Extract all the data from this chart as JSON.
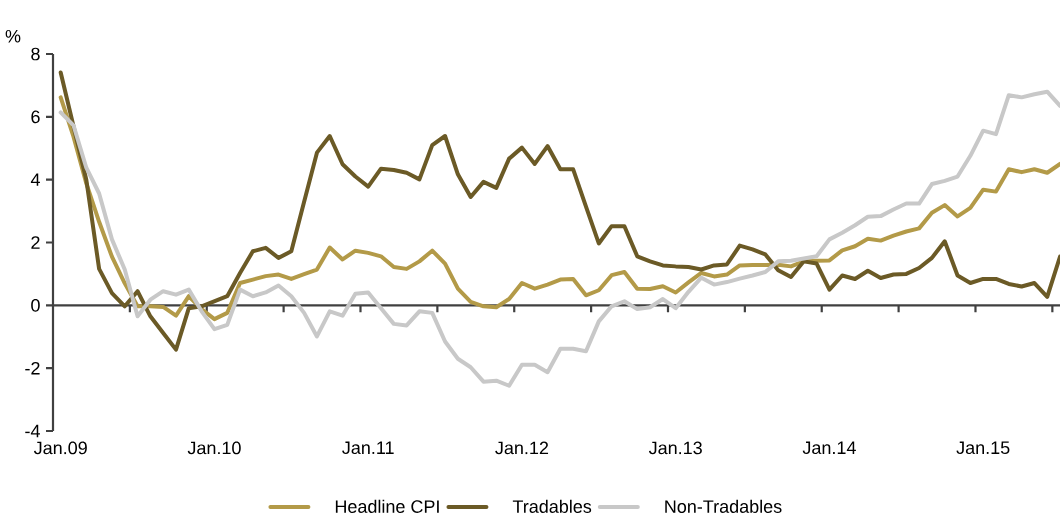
{
  "chart_data": {
    "type": "line",
    "ylabel": "%",
    "x": [
      "2009-01",
      "2009-02",
      "2009-03",
      "2009-04",
      "2009-05",
      "2009-06",
      "2009-07",
      "2009-08",
      "2009-09",
      "2009-10",
      "2009-11",
      "2009-12",
      "2010-01",
      "2010-02",
      "2010-03",
      "2010-04",
      "2010-05",
      "2010-06",
      "2010-07",
      "2010-08",
      "2010-09",
      "2010-10",
      "2010-11",
      "2010-12",
      "2011-01",
      "2011-02",
      "2011-03",
      "2011-04",
      "2011-05",
      "2011-06",
      "2011-07",
      "2011-08",
      "2011-09",
      "2011-10",
      "2011-11",
      "2011-12",
      "2012-01",
      "2012-02",
      "2012-03",
      "2012-04",
      "2012-05",
      "2012-06",
      "2012-07",
      "2012-08",
      "2012-09",
      "2012-10",
      "2012-11",
      "2012-12",
      "2013-01",
      "2013-02",
      "2013-03",
      "2013-04",
      "2013-05",
      "2013-06",
      "2013-07",
      "2013-08",
      "2013-09",
      "2013-10",
      "2013-11",
      "2013-12",
      "2014-01",
      "2014-02",
      "2014-03",
      "2014-04",
      "2014-05",
      "2014-06",
      "2014-07",
      "2014-08",
      "2014-09",
      "2014-10",
      "2014-11",
      "2014-12",
      "2015-01",
      "2015-02",
      "2015-03",
      "2015-04",
      "2015-05",
      "2015-06",
      "2015-07"
    ],
    "series": [
      {
        "name": "Headline CPI",
        "color": "#b39a48",
        "values": [
          6.62,
          5.37,
          3.88,
          2.66,
          1.55,
          0.7,
          -0.03,
          -0.03,
          -0.05,
          -0.33,
          0.29,
          -0.12,
          -0.44,
          -0.24,
          0.71,
          0.82,
          0.93,
          0.98,
          0.84,
          0.99,
          1.14,
          1.84,
          1.46,
          1.74,
          1.67,
          1.56,
          1.22,
          1.16,
          1.4,
          1.74,
          1.33,
          0.53,
          0.11,
          -0.03,
          -0.06,
          0.2,
          0.71,
          0.53,
          0.66,
          0.82,
          0.84,
          0.32,
          0.48,
          0.96,
          1.06,
          0.53,
          0.52,
          0.61,
          0.41,
          0.73,
          1.03,
          0.92,
          0.98,
          1.27,
          1.28,
          1.28,
          1.29,
          1.24,
          1.4,
          1.42,
          1.43,
          1.75,
          1.88,
          2.12,
          2.06,
          2.22,
          2.35,
          2.45,
          2.95,
          3.19,
          2.83,
          3.1,
          3.68,
          3.62,
          4.33,
          4.24,
          4.33,
          4.22,
          4.5
        ]
      },
      {
        "name": "Tradables",
        "color": "#6b5a26",
        "values": [
          7.41,
          5.7,
          4.0,
          1.16,
          0.39,
          -0.03,
          0.45,
          -0.35,
          -0.88,
          -1.41,
          -0.09,
          -0.03,
          0.13,
          0.29,
          1.03,
          1.72,
          1.83,
          1.51,
          1.72,
          3.3,
          4.86,
          5.39,
          4.49,
          4.1,
          3.78,
          4.35,
          4.31,
          4.22,
          4.01,
          5.1,
          5.39,
          4.17,
          3.45,
          3.93,
          3.74,
          4.67,
          5.02,
          4.5,
          5.07,
          4.33,
          4.33,
          3.14,
          1.97,
          2.52,
          2.52,
          1.56,
          1.4,
          1.27,
          1.24,
          1.22,
          1.14,
          1.27,
          1.3,
          1.9,
          1.78,
          1.62,
          1.12,
          0.9,
          1.4,
          1.33,
          0.5,
          0.95,
          0.84,
          1.1,
          0.87,
          0.98,
          1.0,
          1.19,
          1.51,
          2.04,
          0.95,
          0.71,
          0.84,
          0.84,
          0.68,
          0.6,
          0.71,
          0.27,
          1.55
        ]
      },
      {
        "name": "Non-Tradables",
        "color": "#c8c8c8",
        "values": [
          6.14,
          5.73,
          4.38,
          3.56,
          2.1,
          1.14,
          -0.35,
          0.18,
          0.45,
          0.34,
          0.5,
          -0.19,
          -0.76,
          -0.62,
          0.5,
          0.29,
          0.41,
          0.63,
          0.29,
          -0.24,
          -0.99,
          -0.19,
          -0.33,
          0.37,
          0.41,
          -0.09,
          -0.59,
          -0.64,
          -0.19,
          -0.24,
          -1.15,
          -1.7,
          -1.97,
          -2.43,
          -2.4,
          -2.56,
          -1.89,
          -1.89,
          -2.13,
          -1.38,
          -1.38,
          -1.46,
          -0.51,
          -0.03,
          0.13,
          -0.12,
          -0.06,
          0.2,
          -0.09,
          0.43,
          0.88,
          0.66,
          0.74,
          0.85,
          0.95,
          1.06,
          1.4,
          1.42,
          1.49,
          1.56,
          2.1,
          2.31,
          2.55,
          2.82,
          2.84,
          3.05,
          3.24,
          3.24,
          3.86,
          3.96,
          4.1,
          4.76,
          5.56,
          5.45,
          6.69,
          6.62,
          6.72,
          6.8,
          6.35
        ]
      }
    ],
    "xlim": [
      "2008-12-13",
      "2015-07"
    ],
    "xticks": [
      {
        "value": "2009-01",
        "label": "Jan.09"
      },
      {
        "value": "2009-06-13",
        "label": null
      },
      {
        "value": "2009-12-13",
        "label": null
      },
      {
        "value": "2010-01",
        "label": "Jan.10"
      },
      {
        "value": "2010-06-13",
        "label": null
      },
      {
        "value": "2010-12-13",
        "label": null
      },
      {
        "value": "2011-01",
        "label": "Jan.11"
      },
      {
        "value": "2011-06-13",
        "label": null
      },
      {
        "value": "2011-12-13",
        "label": null
      },
      {
        "value": "2012-01",
        "label": "Jan.12"
      },
      {
        "value": "2012-06-13",
        "label": null
      },
      {
        "value": "2012-12-13",
        "label": null
      },
      {
        "value": "2013-01",
        "label": "Jan.13"
      },
      {
        "value": "2013-06-13",
        "label": null
      },
      {
        "value": "2013-12-13",
        "label": null
      },
      {
        "value": "2014-01",
        "label": "Jan.14"
      },
      {
        "value": "2014-06-13",
        "label": null
      },
      {
        "value": "2014-12-13",
        "label": null
      },
      {
        "value": "2015-01",
        "label": "Jan.15"
      },
      {
        "value": "2015-06-13",
        "label": null
      }
    ],
    "ylim": [
      -4,
      8
    ],
    "yticks": [
      -4,
      -2,
      0,
      2,
      4,
      6,
      8
    ],
    "legend": "bottom",
    "marker": "none",
    "line_style": "solid"
  }
}
